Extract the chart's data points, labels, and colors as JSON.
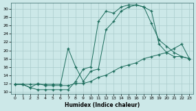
{
  "xlabel": "Humidex (Indice chaleur)",
  "background_color": "#cce8e8",
  "grid_color": "#aacccc",
  "line_color": "#1a6b5a",
  "xlim": [
    -0.5,
    23.5
  ],
  "ylim": [
    9.5,
    31.5
  ],
  "xticks": [
    0,
    1,
    2,
    3,
    4,
    5,
    6,
    7,
    8,
    9,
    10,
    11,
    12,
    13,
    14,
    15,
    16,
    17,
    18,
    19,
    20,
    21,
    22,
    23
  ],
  "yticks": [
    10,
    12,
    14,
    16,
    18,
    20,
    22,
    24,
    26,
    28,
    30
  ],
  "series1_x": [
    0,
    1,
    2,
    3,
    4,
    5,
    6,
    7,
    8,
    9,
    10,
    11,
    12,
    13,
    14,
    15,
    16,
    17,
    18,
    19,
    20,
    21,
    22,
    23
  ],
  "series1_y": [
    11.8,
    11.8,
    11.0,
    10.5,
    10.5,
    10.5,
    10.5,
    10.5,
    12.5,
    15.5,
    16.0,
    27.0,
    29.5,
    29.0,
    30.5,
    31.0,
    31.0,
    30.5,
    29.5,
    21.5,
    19.5,
    18.5,
    18.5,
    18.0
  ],
  "series2_x": [
    0,
    1,
    2,
    3,
    4,
    5,
    6,
    7,
    8,
    9,
    10,
    11,
    12,
    13,
    14,
    15,
    16,
    17,
    18,
    19,
    20,
    21,
    22,
    23
  ],
  "series2_y": [
    11.8,
    11.8,
    11.8,
    11.8,
    11.8,
    11.8,
    11.8,
    20.5,
    16.0,
    12.5,
    15.0,
    15.5,
    25.0,
    27.0,
    29.5,
    30.5,
    31.0,
    30.5,
    26.5,
    22.5,
    21.0,
    19.5,
    18.5,
    18.0
  ],
  "series3_x": [
    0,
    1,
    2,
    3,
    4,
    5,
    6,
    7,
    8,
    9,
    10,
    11,
    12,
    13,
    14,
    15,
    16,
    17,
    18,
    19,
    20,
    21,
    22,
    23
  ],
  "series3_y": [
    11.8,
    11.8,
    11.0,
    12.0,
    11.5,
    11.5,
    11.5,
    11.5,
    12.0,
    12.0,
    12.5,
    13.5,
    14.0,
    15.0,
    16.0,
    16.5,
    17.0,
    18.0,
    18.5,
    19.0,
    19.5,
    20.5,
    21.5,
    18.0
  ]
}
